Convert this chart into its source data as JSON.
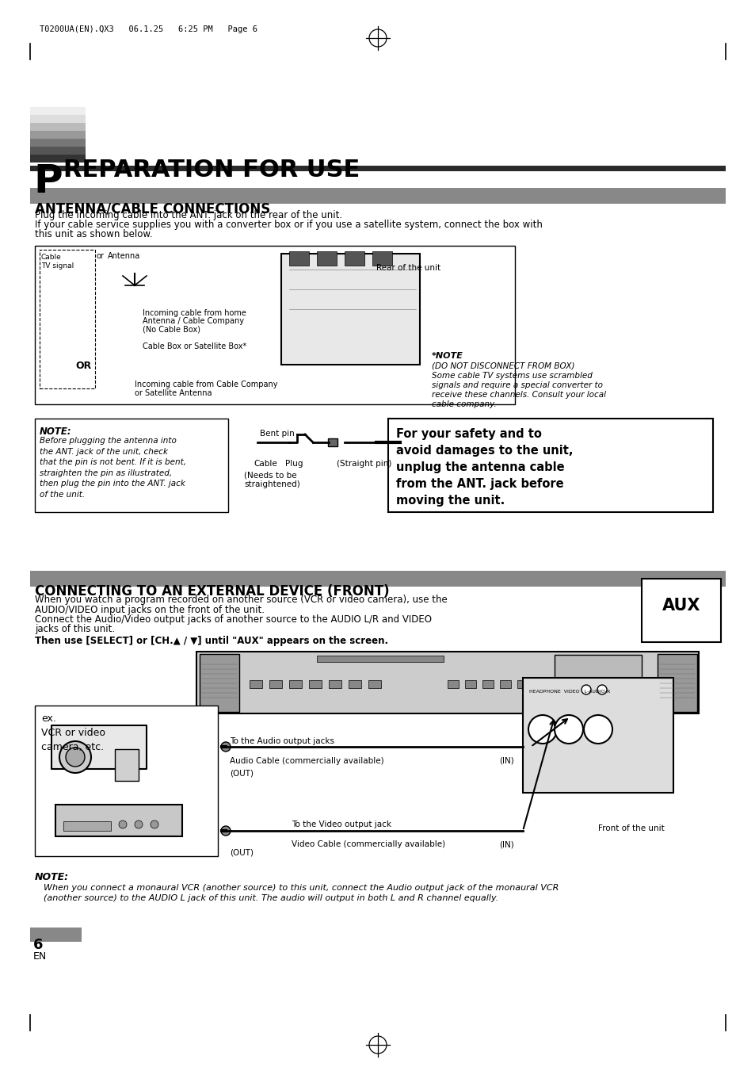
{
  "page_header": "T0200UA(EN).QX3   06.1.25   6:25 PM   Page 6",
  "main_title_p": "P",
  "main_title_rest": "REPARATION FOR USE",
  "section1_title": "ANTENNA/CABLE CONNECTIONS",
  "section1_line1": "Plug the incoming cable into the ANT. jack on the rear of the unit.",
  "section1_line2": "If your cable service supplies you with a converter box or if you use a satellite system, connect the box with",
  "section1_line3": "this unit as shown below.",
  "diag_cable_tv": "Cable\nTV signal",
  "diag_or": "or",
  "diag_antenna": "Antenna",
  "diag_incoming1": "Incoming cable from home",
  "diag_incoming2": "Antenna / Cable Company",
  "diag_incoming3": "(No Cable Box)",
  "diag_cable_box": "Cable Box or Satellite Box*",
  "diag_or2": "OR",
  "diag_incoming4": "Incoming cable from Cable Company",
  "diag_incoming5": "or Satellite Antenna",
  "diag_rear": "Rear of the unit",
  "note2_title": "*NOTE",
  "note2_line1": "(DO NOT DISCONNECT FROM BOX)",
  "note2_line2": "Some cable TV systems use scrambled",
  "note2_line3": "signals and require a special converter to",
  "note2_line4": "receive these channels. Consult your local",
  "note2_line5": "cable company.",
  "note1_title": "NOTE:",
  "note1_body": "Before plugging the antenna into\nthe ANT. jack of the unit, check\nthat the pin is not bent. If it is bent,\nstraighten the pin as illustrated,\nthen plug the pin into the ANT. jack\nof the unit.",
  "bent_pin_label": "Bent pin",
  "cable_label": "Cable",
  "plug_label": "Plug",
  "needs_label": "(Needs to be\nstraightened)",
  "straight_pin_label": "(Straight pin)",
  "safety_line1": "For your safety and to",
  "safety_line2": "avoid damages to the unit,",
  "safety_line3": "unplug the antenna cable",
  "safety_line4": "from the ANT. jack before",
  "safety_line5": "moving the unit.",
  "section2_title": "CONNECTING TO AN EXTERNAL DEVICE (FRONT)",
  "sec2_line1": "When you watch a program recorded on another source (VCR or video camera), use the",
  "sec2_line2": "AUDIO/VIDEO input jacks on the front of the unit.",
  "sec2_line3": "Connect the Audio/Video output jacks of another source to the AUDIO L/R and VIDEO",
  "sec2_line4": "jacks of this unit.",
  "sec2_bold": "Then use [SELECT] or [CH.▲ / ▼] until \"AUX\" appears on the screen.",
  "aux_label": "AUX",
  "vcr_label": "ex.\nVCR or video\ncamera, etc.",
  "audio_out": "To the Audio output jacks",
  "audio_cable": "Audio Cable (commercially available)",
  "out_label": "(OUT)",
  "in_label": "(IN)",
  "video_out": "To the Video output jack",
  "video_cable": "Video Cable (commercially available)",
  "front_label": "Front of the unit",
  "note3_title": "NOTE:",
  "note3_line1": "When you connect a monaural VCR (another source) to this unit, connect the Audio output jack of the monaural VCR",
  "note3_line2": "(another source) to the AUDIO L jack of this unit. The audio will output in both L and R channel equally.",
  "page_num": "6",
  "page_lang": "EN",
  "bg": "#ffffff"
}
